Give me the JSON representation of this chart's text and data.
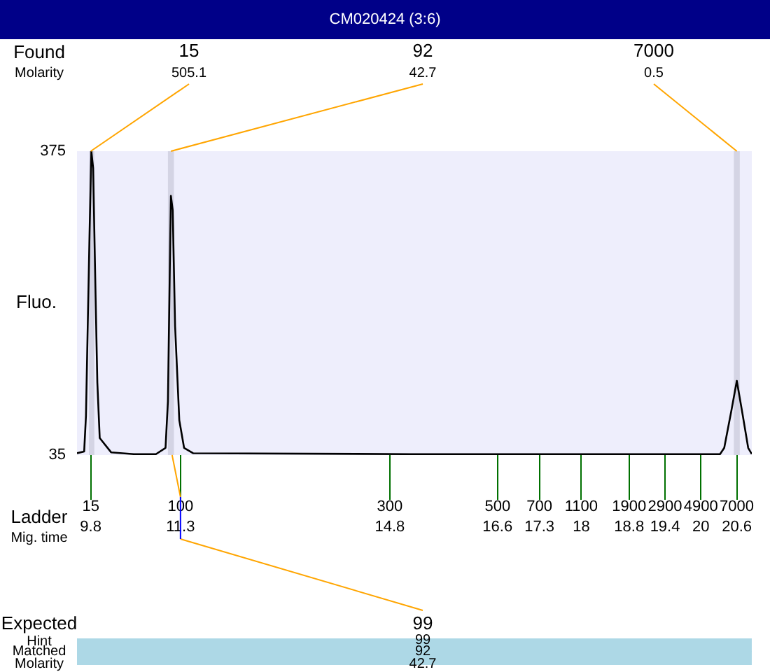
{
  "chart_data": {
    "type": "line",
    "title": "CM020424 (3:6)",
    "ylabel": "Fluo.",
    "x": [
      9.57,
      9.69,
      9.72,
      9.78,
      9.81,
      9.84,
      9.88,
      9.91,
      9.95,
      10.14,
      10.52,
      10.89,
      11.05,
      11.09,
      11.13,
      11.14,
      11.17,
      11.21,
      11.28,
      11.36,
      11.51,
      15.15,
      18.11,
      20.32,
      20.39,
      20.51,
      20.6,
      20.7,
      20.79,
      20.85
    ],
    "series": [
      {
        "color": "#000000",
        "values": [
          37,
          39,
          79,
          283,
          375,
          356,
          215,
          116,
          54,
          38,
          36,
          36,
          43,
          95,
          283,
          325,
          309,
          179,
          74,
          43,
          37,
          36,
          36,
          36,
          43,
          85,
          118,
          79,
          43,
          36
        ]
      }
    ],
    "xlim": [
      9.57,
      20.85
    ],
    "ylim": [
      35,
      375
    ],
    "xticks": [
      9.8,
      11.3,
      14.8,
      16.6,
      17.3,
      18,
      18.8,
      19.4,
      20,
      20.6
    ],
    "yticks": [
      35,
      375
    ],
    "bands": [
      {
        "axis": "x",
        "from": 9.77,
        "to": 9.86,
        "color": "#d4d4e4"
      },
      {
        "axis": "x",
        "from": 11.09,
        "to": 11.19,
        "color": "#d4d4e4"
      },
      {
        "axis": "x",
        "from": 20.55,
        "to": 20.65,
        "color": "#d4d4e4"
      }
    ],
    "annotations": [
      "Found",
      "Molarity",
      "Ladder",
      "Mig. time",
      "Expected",
      "Hint",
      "Matched",
      "Molarity",
      "99",
      "99",
      "92",
      "42.7",
      {
        "text": "15",
        "x": 9.8,
        "y": 375
      },
      "505.1",
      {
        "text": "92",
        "x": 11.14,
        "y": 375
      },
      "42.7",
      {
        "text": "7000",
        "x": 20.6,
        "y": 375
      },
      "0.5",
      "15",
      {
        "text": "100",
        "x": 11.3,
        "y": 35
      },
      "300",
      "500",
      "700",
      "1100",
      "1900",
      "2900",
      "4900",
      "7000"
    ],
    "legend": false
  }
}
